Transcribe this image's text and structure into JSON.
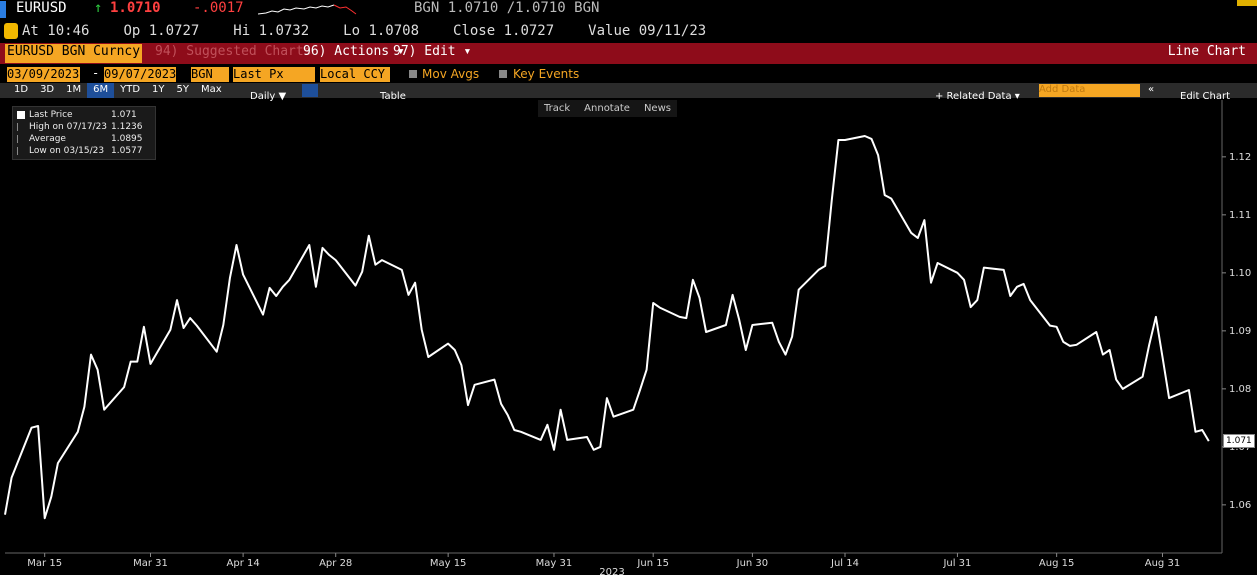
{
  "header": {
    "ticker": "EURUSD",
    "arrow": "↑",
    "price": "1.0710",
    "change": "-.0017",
    "quote": "BGN 1.0710 /1.0710 BGN",
    "stats": [
      "At 10:46",
      "Op 1.0727",
      "Hi 1.0732",
      "Lo 1.0708",
      "Close 1.0727",
      "Value 09/11/23"
    ]
  },
  "menu": {
    "security": "EURUSD BGN Curncy",
    "items": [
      "94) Suggested Charts",
      "96) Actions ▾",
      "97) Edit ▾"
    ],
    "view": "Line Chart"
  },
  "controls": {
    "start": "03/09/2023",
    "separator": "-",
    "end": "09/07/2023",
    "source": "BGN",
    "field": "Last Px",
    "currency": "Local CCY",
    "toggles": [
      "Mov Avgs",
      "Key Events"
    ]
  },
  "toolbar": {
    "ranges": [
      "1D",
      "3D",
      "1M",
      "6M",
      "YTD",
      "1Y",
      "5Y",
      "Max"
    ],
    "selected_range": 3,
    "frequency": "Daily ▼",
    "table": "Table",
    "related": "+ Related Data ▾",
    "add": "Add Data",
    "edit": "Edit Chart",
    "tools": [
      "Track",
      "Annotate",
      "News"
    ]
  },
  "chart_data": {
    "type": "line",
    "xlabel": "2023",
    "x": [
      "2023-03-09",
      "2023-03-10",
      "2023-03-13",
      "2023-03-14",
      "2023-03-15",
      "2023-03-16",
      "2023-03-17",
      "2023-03-20",
      "2023-03-21",
      "2023-03-22",
      "2023-03-23",
      "2023-03-24",
      "2023-03-27",
      "2023-03-28",
      "2023-03-29",
      "2023-03-30",
      "2023-03-31",
      "2023-04-03",
      "2023-04-04",
      "2023-04-05",
      "2023-04-06",
      "2023-04-07",
      "2023-04-10",
      "2023-04-11",
      "2023-04-12",
      "2023-04-13",
      "2023-04-14",
      "2023-04-17",
      "2023-04-18",
      "2023-04-19",
      "2023-04-20",
      "2023-04-21",
      "2023-04-24",
      "2023-04-25",
      "2023-04-26",
      "2023-04-27",
      "2023-04-28",
      "2023-05-01",
      "2023-05-02",
      "2023-05-03",
      "2023-05-04",
      "2023-05-05",
      "2023-05-08",
      "2023-05-09",
      "2023-05-10",
      "2023-05-11",
      "2023-05-12",
      "2023-05-15",
      "2023-05-16",
      "2023-05-17",
      "2023-05-18",
      "2023-05-19",
      "2023-05-22",
      "2023-05-23",
      "2023-05-24",
      "2023-05-25",
      "2023-05-26",
      "2023-05-29",
      "2023-05-30",
      "2023-05-31",
      "2023-06-01",
      "2023-06-02",
      "2023-06-05",
      "2023-06-06",
      "2023-06-07",
      "2023-06-08",
      "2023-06-09",
      "2023-06-12",
      "2023-06-13",
      "2023-06-14",
      "2023-06-15",
      "2023-06-16",
      "2023-06-19",
      "2023-06-20",
      "2023-06-21",
      "2023-06-22",
      "2023-06-23",
      "2023-06-26",
      "2023-06-27",
      "2023-06-28",
      "2023-06-29",
      "2023-06-30",
      "2023-07-03",
      "2023-07-04",
      "2023-07-05",
      "2023-07-06",
      "2023-07-07",
      "2023-07-10",
      "2023-07-11",
      "2023-07-12",
      "2023-07-13",
      "2023-07-14",
      "2023-07-17",
      "2023-07-18",
      "2023-07-19",
      "2023-07-20",
      "2023-07-21",
      "2023-07-24",
      "2023-07-25",
      "2023-07-26",
      "2023-07-27",
      "2023-07-28",
      "2023-07-31",
      "2023-08-01",
      "2023-08-02",
      "2023-08-03",
      "2023-08-04",
      "2023-08-07",
      "2023-08-08",
      "2023-08-09",
      "2023-08-10",
      "2023-08-11",
      "2023-08-14",
      "2023-08-15",
      "2023-08-16",
      "2023-08-17",
      "2023-08-18",
      "2023-08-21",
      "2023-08-22",
      "2023-08-23",
      "2023-08-24",
      "2023-08-25",
      "2023-08-28",
      "2023-08-29",
      "2023-08-30",
      "2023-08-31",
      "2023-09-01",
      "2023-09-04",
      "2023-09-05",
      "2023-09-06",
      "2023-09-07"
    ],
    "series": [
      {
        "name": "Last Price",
        "color": "#ffffff",
        "values": [
          1.0583,
          1.0647,
          1.0733,
          1.0736,
          1.0577,
          1.0614,
          1.0672,
          1.0726,
          1.0769,
          1.0859,
          1.0833,
          1.0764,
          1.0803,
          1.0847,
          1.0847,
          1.0907,
          1.0843,
          1.0902,
          1.0953,
          1.0905,
          1.0922,
          1.0909,
          1.0864,
          1.091,
          1.0991,
          1.1048,
          1.0997,
          1.0928,
          1.0974,
          1.096,
          1.0976,
          1.0988,
          1.1048,
          1.0976,
          1.1043,
          1.1031,
          1.1022,
          1.0978,
          1.1002,
          1.1064,
          1.1014,
          1.1022,
          1.1005,
          1.0962,
          1.0983,
          1.0902,
          1.0855,
          1.0878,
          1.0867,
          1.0841,
          1.0772,
          1.0807,
          1.0816,
          1.0774,
          1.0755,
          1.0729,
          1.0726,
          1.0712,
          1.0738,
          1.0695,
          1.0764,
          1.0712,
          1.0717,
          1.0695,
          1.07,
          1.0784,
          1.0752,
          1.0764,
          1.0798,
          1.0833,
          1.0948,
          1.094,
          1.0924,
          1.0922,
          1.0988,
          1.0957,
          1.0898,
          1.091,
          1.0962,
          1.0919,
          1.0867,
          1.091,
          1.0914,
          1.0881,
          1.0859,
          1.089,
          1.0971,
          1.1005,
          1.1012,
          1.1126,
          1.1229,
          1.1229,
          1.1236,
          1.1231,
          1.1203,
          1.1134,
          1.1128,
          1.1069,
          1.106,
          1.1091,
          1.0983,
          1.1017,
          1.1,
          1.0988,
          1.0941,
          1.0953,
          1.1009,
          1.1005,
          1.096,
          1.0976,
          1.0981,
          1.0953,
          1.0909,
          1.0907,
          1.0881,
          1.0874,
          1.0876,
          1.0898,
          1.0859,
          1.0867,
          1.0816,
          1.08,
          1.0821,
          1.0876,
          1.0924,
          1.0855,
          1.0784,
          1.0798,
          1.0726,
          1.0729,
          1.071
        ]
      }
    ],
    "last_label": "1.071",
    "stats": [
      {
        "label": "High on 07/17/23",
        "value": "1.1236"
      },
      {
        "label": "Average",
        "value": "1.0895"
      },
      {
        "label": "Low on 03/15/23",
        "value": "1.0577"
      }
    ],
    "xlim": [
      "2023-03-09",
      "2023-09-09"
    ],
    "xticks": [
      {
        "value": "2023-03-15",
        "label": "Mar 15"
      },
      {
        "value": "2023-03-31",
        "label": "Mar 31"
      },
      {
        "value": "2023-04-14",
        "label": "Apr 14"
      },
      {
        "value": "2023-04-28",
        "label": "Apr 28"
      },
      {
        "value": "2023-05-15",
        "label": "May 15"
      },
      {
        "value": "2023-05-31",
        "label": "May 31"
      },
      {
        "value": "2023-06-15",
        "label": "Jun 15"
      },
      {
        "value": "2023-06-30",
        "label": "Jun 30"
      },
      {
        "value": "2023-07-14",
        "label": "Jul 14"
      },
      {
        "value": "2023-07-31",
        "label": "Jul 31"
      },
      {
        "value": "2023-08-15",
        "label": "Aug 15"
      },
      {
        "value": "2023-08-31",
        "label": "Aug 31"
      }
    ],
    "ylim": [
      1.0517,
      1.1298
    ],
    "yticks": [
      1.06,
      1.07,
      1.08,
      1.09,
      {
        "value": 1.1,
        "label": "1.10"
      },
      1.11,
      1.12
    ],
    "grid": false
  }
}
